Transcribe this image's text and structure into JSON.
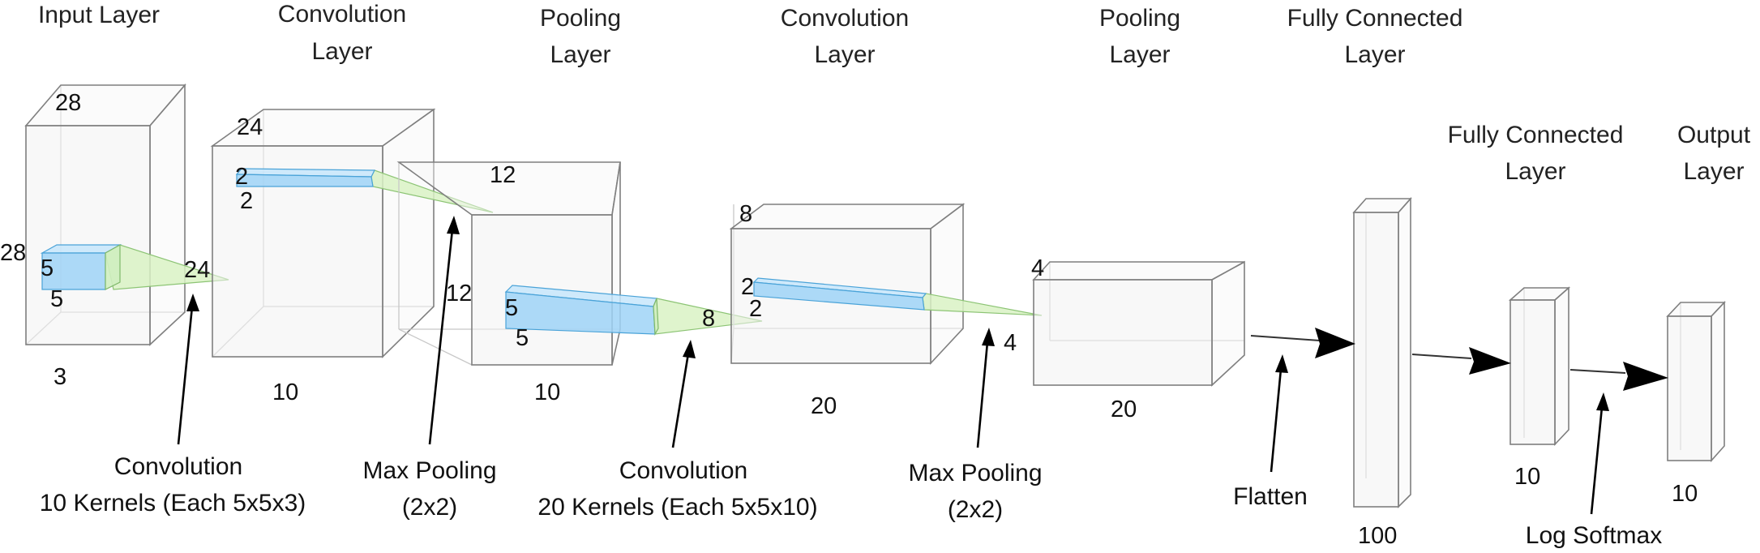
{
  "layer_titles": {
    "input": [
      "Input Layer"
    ],
    "conv1": [
      "Convolution",
      "Layer"
    ],
    "pool1": [
      "Pooling",
      "Layer"
    ],
    "conv2": [
      "Convolution",
      "Layer"
    ],
    "pool2": [
      "Pooling",
      "Layer"
    ],
    "fc1": [
      "Fully Connected",
      "Layer"
    ],
    "fc2": [
      "Fully Connected",
      "Layer"
    ],
    "output": [
      "Output",
      "Layer"
    ]
  },
  "dims": {
    "input": {
      "top": "28",
      "left": "28",
      "bottom": "3"
    },
    "input_kernel": {
      "a": "5",
      "b": "5",
      "out": "24"
    },
    "conv1": {
      "top": "24",
      "bottom": "10"
    },
    "conv1_kernel": {
      "a": "2",
      "b": "2"
    },
    "pool1": {
      "top": "12",
      "right": "12",
      "bottom": "10"
    },
    "pool1_kernel": {
      "a": "5",
      "b": "5",
      "out": "8"
    },
    "conv2": {
      "top": "8",
      "bottom": "20"
    },
    "conv2_kernel": {
      "a": "2",
      "b": "2"
    },
    "pool2": {
      "top": "4",
      "right": "4",
      "bottom": "20"
    },
    "fc1": {
      "bottom": "100"
    },
    "fc2": {
      "bottom": "10"
    },
    "output": {
      "bottom": "10"
    }
  },
  "annotations": {
    "conv1": [
      "Convolution",
      "10 Kernels (Each 5x5x3)"
    ],
    "maxpool1": [
      "Max Pooling",
      "(2x2)"
    ],
    "conv2": [
      "Convolution",
      "20 Kernels (Each 5x5x10)"
    ],
    "maxpool2": [
      "Max Pooling",
      "(2x2)"
    ],
    "flatten": [
      "Flatten"
    ],
    "softmax": [
      "Log Softmax"
    ]
  }
}
